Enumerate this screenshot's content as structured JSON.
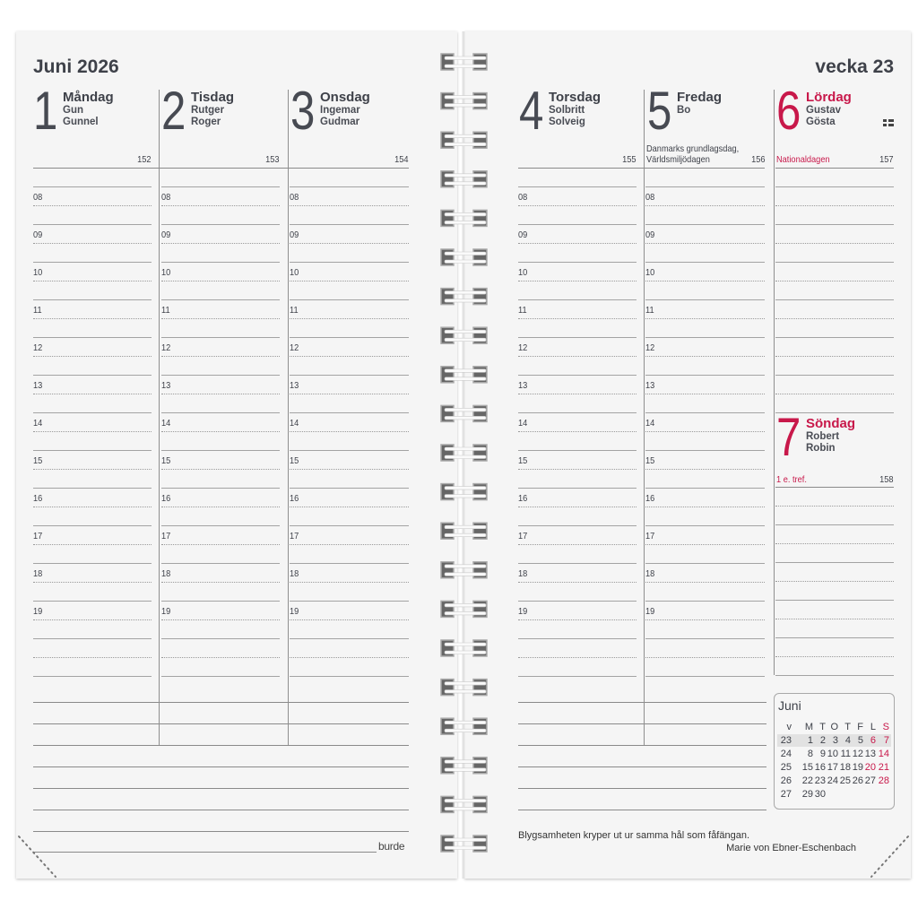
{
  "header": {
    "month_year": "Juni 2026",
    "week": "vecka 23"
  },
  "days": [
    {
      "num": "1",
      "name": "Måndag",
      "namedays": [
        "Gun",
        "Gunnel"
      ],
      "day_of_year": "152",
      "holiday": [],
      "red": false
    },
    {
      "num": "2",
      "name": "Tisdag",
      "namedays": [
        "Rutger",
        "Roger"
      ],
      "day_of_year": "153",
      "holiday": [],
      "red": false
    },
    {
      "num": "3",
      "name": "Onsdag",
      "namedays": [
        "Ingemar",
        "Gudmar"
      ],
      "day_of_year": "154",
      "holiday": [],
      "red": false
    },
    {
      "num": "4",
      "name": "Torsdag",
      "namedays": [
        "Solbritt",
        "Solveig"
      ],
      "day_of_year": "155",
      "holiday": [],
      "red": false
    },
    {
      "num": "5",
      "name": "Fredag",
      "namedays": [
        "Bo"
      ],
      "day_of_year": "156",
      "holiday": [
        "Danmarks grundlagsdag,",
        "Världsmiljödagen"
      ],
      "red": false
    },
    {
      "num": "6",
      "name": "Lördag",
      "namedays": [
        "Gustav",
        "Gösta"
      ],
      "day_of_year": "157",
      "holiday": [
        "Nationaldagen"
      ],
      "red": true,
      "icon": "swedish-flag-icon"
    },
    {
      "num": "7",
      "name": "Söndag",
      "namedays": [
        "Robert",
        "Robin"
      ],
      "day_of_year": "158",
      "holiday": [
        "1 e. tref."
      ],
      "red": true
    }
  ],
  "hours": [
    "08",
    "09",
    "10",
    "11",
    "12",
    "13",
    "14",
    "15",
    "16",
    "17",
    "18",
    "19"
  ],
  "mini_calendar": {
    "title": "Juni",
    "headers": [
      "v",
      "M",
      "T",
      "O",
      "T",
      "F",
      "L",
      "S"
    ],
    "weeks": [
      {
        "week": "23",
        "days": [
          "1",
          "2",
          "3",
          "4",
          "5",
          "6",
          "7"
        ],
        "current": true
      },
      {
        "week": "24",
        "days": [
          "8",
          "9",
          "10",
          "11",
          "12",
          "13",
          "14"
        ]
      },
      {
        "week": "25",
        "days": [
          "15",
          "16",
          "17",
          "18",
          "19",
          "20",
          "21"
        ]
      },
      {
        "week": "26",
        "days": [
          "22",
          "23",
          "24",
          "25",
          "26",
          "27",
          "28"
        ]
      },
      {
        "week": "27",
        "days": [
          "29",
          "30",
          "",
          "",
          "",
          "",
          ""
        ]
      }
    ],
    "red_days": [
      "6",
      "7",
      "14",
      "20",
      "21",
      "28"
    ]
  },
  "quote": {
    "text": "Blygsamheten kryper ut ur samma hål som fåfängan.",
    "author": "Marie von Ebner-Eschenbach"
  },
  "brand": "burde",
  "colors": {
    "text": "#3e4149",
    "accent_red": "#c8184a",
    "page": "#f5f5f5"
  }
}
